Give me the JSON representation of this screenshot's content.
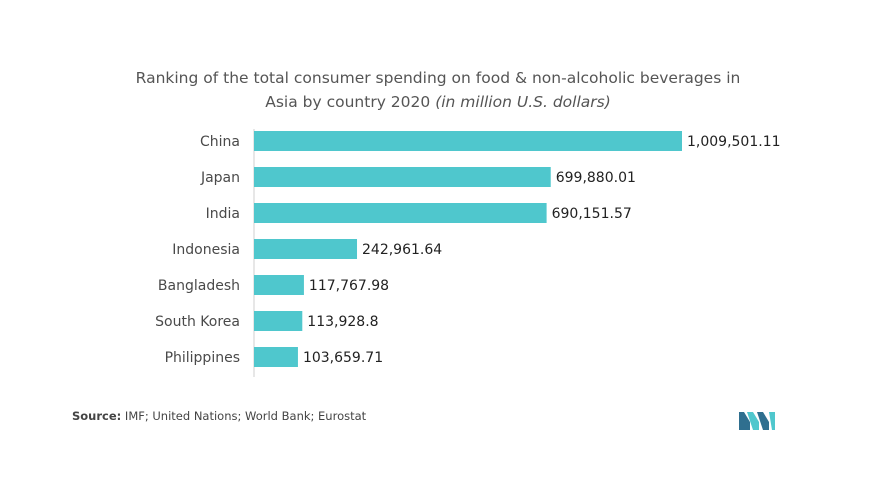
{
  "chart_data": {
    "type": "bar",
    "orientation": "horizontal",
    "title_line1": "Ranking of the total consumer spending on food & non-alcoholic beverages in",
    "title_line2": "Asia by country 2020",
    "title_unit": "(in million U.S. dollars)",
    "categories": [
      "China",
      "Japan",
      "India",
      "Indonesia",
      "Bangladesh",
      "South Korea",
      "Philippines"
    ],
    "values": [
      1009501.11,
      699880.01,
      690151.57,
      242961.64,
      117767.98,
      113928.8,
      103659.71
    ],
    "value_labels": [
      "1,009,501.11",
      "699,880.01",
      "690,151.57",
      "242,961.64",
      "117,767.98",
      "113,928.8",
      "103,659.71"
    ],
    "xlim": [
      0,
      1009501.11
    ],
    "bar_color": "#4fc7cd",
    "grid": false,
    "legend": "none"
  },
  "source": {
    "label": "Source:",
    "text": " IMF; United Nations; World Bank; Eurostat"
  },
  "logo": {
    "icon": "mordor-intelligence-logo-icon",
    "colors": [
      "#2f6f8f",
      "#4fc7cd"
    ]
  }
}
